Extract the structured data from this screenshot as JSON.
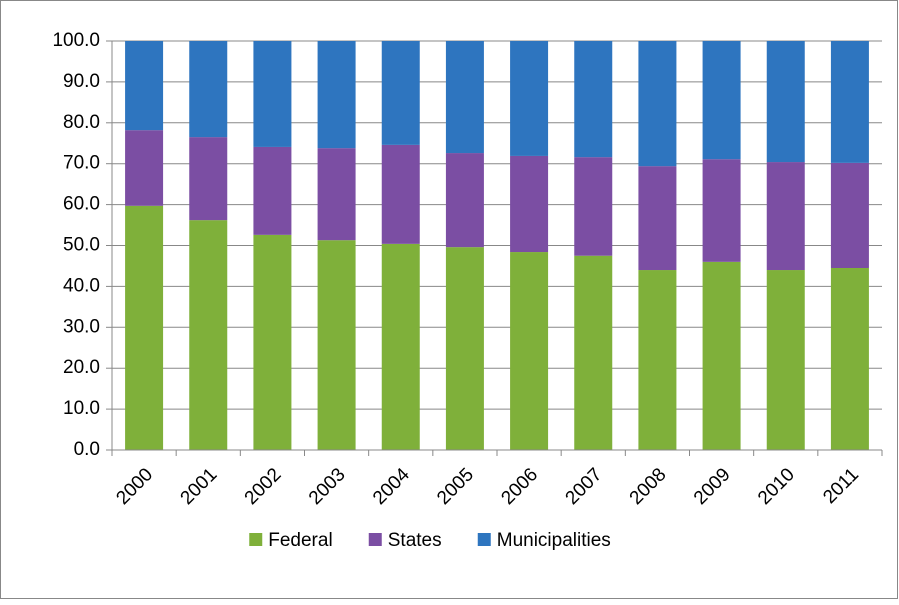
{
  "chart_data": {
    "type": "stacked_bar",
    "categories": [
      "2000",
      "2001",
      "2002",
      "2003",
      "2004",
      "2005",
      "2006",
      "2007",
      "2008",
      "2009",
      "2010",
      "2011"
    ],
    "series": [
      {
        "name": "Federal",
        "color": "#7fb03a",
        "values": [
          59.7,
          56.2,
          52.6,
          51.3,
          50.4,
          49.6,
          48.4,
          47.5,
          44.0,
          46.0,
          44.0,
          44.5
        ]
      },
      {
        "name": "States",
        "color": "#7b4ea3",
        "values": [
          18.5,
          20.3,
          21.5,
          22.5,
          24.2,
          23.0,
          23.5,
          24.1,
          25.4,
          25.1,
          26.4,
          25.7
        ]
      },
      {
        "name": "Municipalities",
        "color": "#2e75bf",
        "values": [
          21.8,
          23.5,
          25.9,
          26.2,
          25.4,
          27.4,
          28.1,
          28.4,
          30.6,
          28.9,
          29.6,
          29.8
        ]
      }
    ],
    "ylim": [
      0,
      100
    ],
    "yticks": [
      {
        "value": 0,
        "label": "0.0"
      },
      {
        "value": 10,
        "label": "10.0"
      },
      {
        "value": 20,
        "label": "20.0"
      },
      {
        "value": 30,
        "label": "30.0"
      },
      {
        "value": 40,
        "label": "40.0"
      },
      {
        "value": 50,
        "label": "50.0"
      },
      {
        "value": 60,
        "label": "60.0"
      },
      {
        "value": 70,
        "label": "70.0"
      },
      {
        "value": 80,
        "label": "80.0"
      },
      {
        "value": 90,
        "label": "90.0"
      },
      {
        "value": 100,
        "label": "100.0"
      }
    ],
    "grid": true,
    "legend": "bottom"
  }
}
